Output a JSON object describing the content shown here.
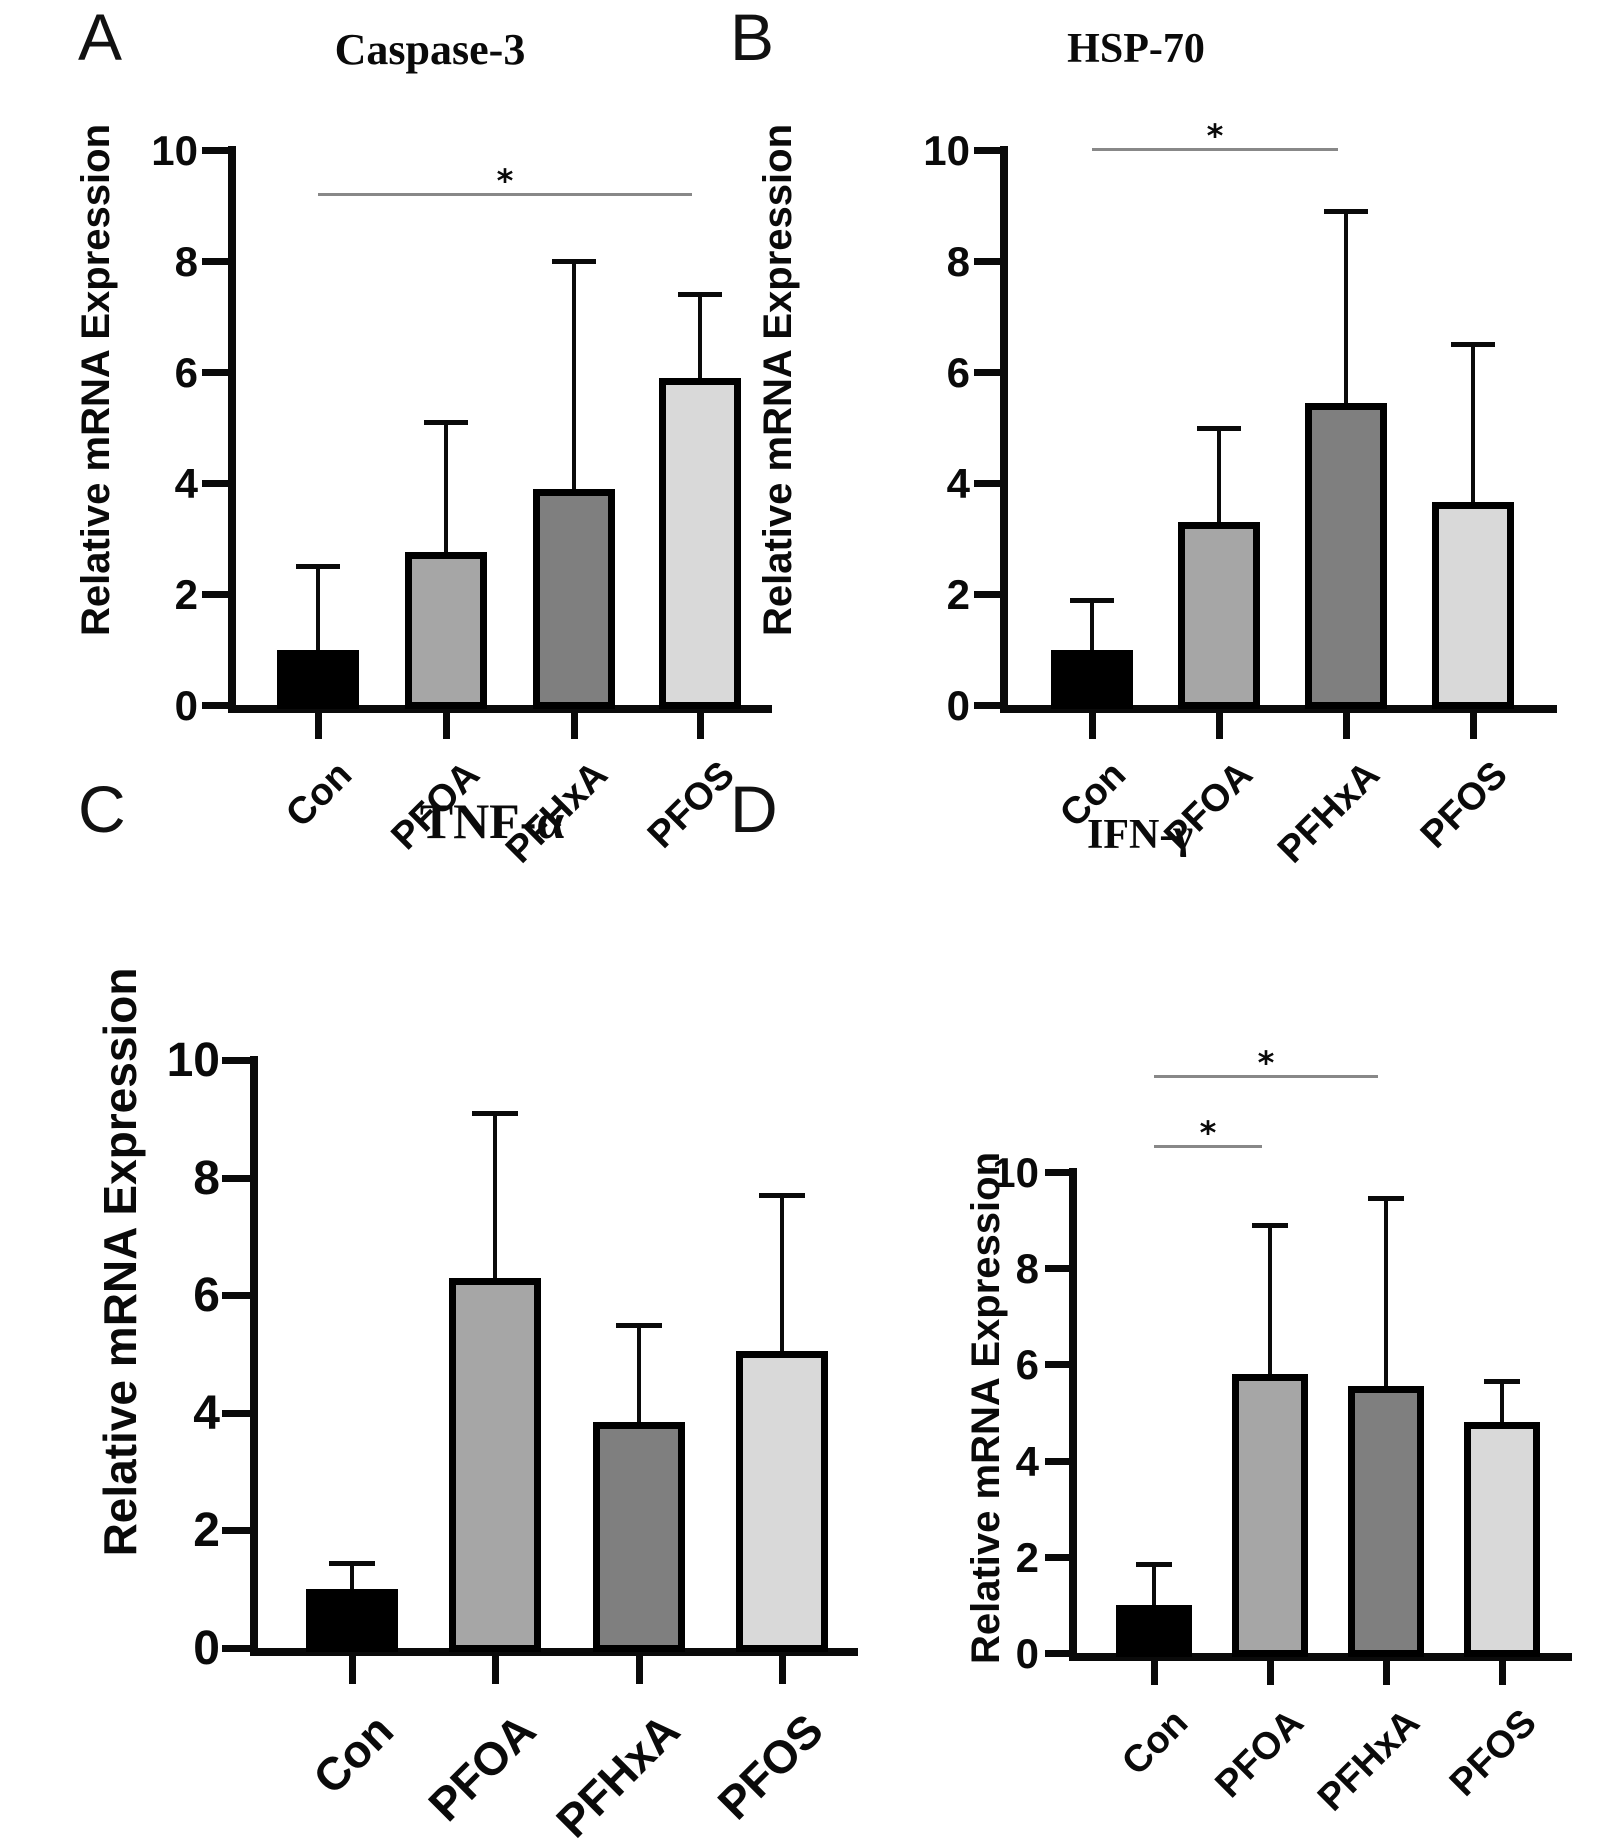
{
  "figure": {
    "ylabel": "Relative mRNA Expression",
    "categories": [
      "Con",
      "PFOA",
      "PFHxA",
      "PFOS"
    ],
    "bar_colors": [
      "#000000",
      "#a6a6a6",
      "#7f7f7f",
      "#d9d9d9"
    ],
    "significance_marker": "*"
  },
  "chart_data": [
    {
      "panel_letter": "A",
      "type": "bar",
      "title": "Caspase-3",
      "ylabel": "Relative mRNA Expression",
      "categories": [
        "Con",
        "PFOA",
        "PFHxA",
        "PFOS"
      ],
      "values": [
        1.0,
        2.75,
        3.9,
        5.9
      ],
      "error_sd": [
        1.5,
        2.35,
        4.1,
        1.5
      ],
      "bar_colors": [
        "#000000",
        "#a6a6a6",
        "#7f7f7f",
        "#d9d9d9"
      ],
      "ylim": [
        0,
        10
      ],
      "yticks": [
        0,
        2,
        4,
        6,
        8,
        10
      ],
      "grid": false,
      "significance": [
        {
          "from": 0,
          "to": 3,
          "label": "*"
        }
      ]
    },
    {
      "panel_letter": "B",
      "type": "bar",
      "title": "HSP-70",
      "ylabel": "Relative mRNA Expression",
      "categories": [
        "Con",
        "PFOA",
        "PFHxA",
        "PFOS"
      ],
      "values": [
        1.0,
        3.3,
        5.45,
        3.65
      ],
      "error_sd": [
        0.9,
        1.7,
        3.45,
        2.85
      ],
      "bar_colors": [
        "#000000",
        "#a6a6a6",
        "#7f7f7f",
        "#d9d9d9"
      ],
      "ylim": [
        0,
        10
      ],
      "yticks": [
        0,
        2,
        4,
        6,
        8,
        10
      ],
      "grid": false,
      "significance": [
        {
          "from": 0,
          "to": 2,
          "label": "*"
        }
      ]
    },
    {
      "panel_letter": "C",
      "type": "bar",
      "title": "TNF-α",
      "ylabel": "Relative mRNA Expression",
      "categories": [
        "Con",
        "PFOA",
        "PFHxA",
        "PFOS"
      ],
      "values": [
        1.0,
        6.3,
        3.85,
        5.05
      ],
      "error_sd": [
        0.45,
        2.8,
        1.65,
        2.65
      ],
      "bar_colors": [
        "#000000",
        "#a6a6a6",
        "#7f7f7f",
        "#d9d9d9"
      ],
      "ylim": [
        0,
        10
      ],
      "yticks": [
        0,
        2,
        4,
        6,
        8,
        10
      ],
      "grid": false,
      "significance": []
    },
    {
      "panel_letter": "D",
      "type": "bar",
      "title": "IFN-γ",
      "ylabel": "Relative mRNA Expression",
      "categories": [
        "Con",
        "PFOA",
        "PFHxA",
        "PFOS"
      ],
      "values": [
        1.0,
        5.8,
        5.55,
        4.8
      ],
      "error_sd": [
        0.85,
        3.1,
        3.9,
        0.85
      ],
      "bar_colors": [
        "#000000",
        "#a6a6a6",
        "#7f7f7f",
        "#d9d9d9"
      ],
      "ylim": [
        0,
        10
      ],
      "yticks": [
        0,
        2,
        4,
        6,
        8,
        10
      ],
      "grid": false,
      "significance": [
        {
          "from": 0,
          "to": 2,
          "label": "*"
        },
        {
          "from": 0,
          "to": 1,
          "label": "*"
        }
      ]
    }
  ]
}
